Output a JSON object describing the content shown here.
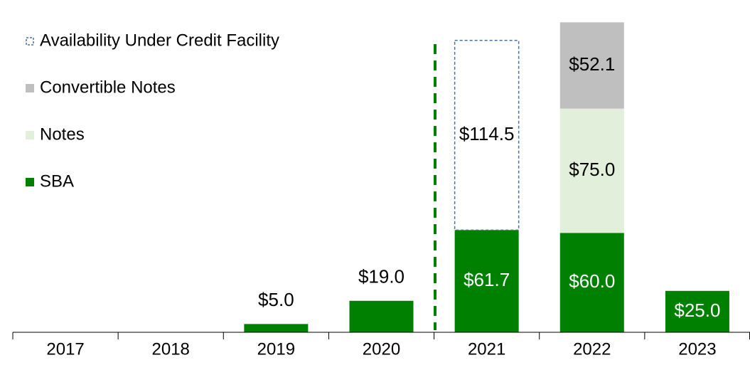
{
  "chart_data": {
    "type": "stacked-bar",
    "categories": [
      "2017",
      "2018",
      "2019",
      "2020",
      "2021",
      "2022",
      "2023"
    ],
    "series": [
      {
        "name": "SBA",
        "color": "#008000",
        "values": [
          null,
          null,
          5.0,
          19.0,
          61.7,
          60.0,
          25.0
        ],
        "value_labels": [
          null,
          null,
          "$5.0",
          "$19.0",
          "$61.7",
          "$60.0",
          "$25.0"
        ]
      },
      {
        "name": "Notes",
        "color": "#e2efda",
        "values": [
          null,
          null,
          null,
          null,
          null,
          75.0,
          null
        ],
        "value_labels": [
          null,
          null,
          null,
          null,
          null,
          "$75.0",
          null
        ]
      },
      {
        "name": "Convertible Notes",
        "color": "#bfbfbf",
        "values": [
          null,
          null,
          null,
          null,
          null,
          52.1,
          null
        ],
        "value_labels": [
          null,
          null,
          null,
          null,
          null,
          "$52.1",
          null
        ]
      },
      {
        "name": "Availability Under Credit Facility",
        "color": "none",
        "values": [
          null,
          null,
          null,
          null,
          114.5,
          null,
          null
        ],
        "value_labels": [
          null,
          null,
          null,
          null,
          "$114.5",
          null,
          null
        ]
      }
    ],
    "ylim": [
      0,
      195
    ]
  }
}
